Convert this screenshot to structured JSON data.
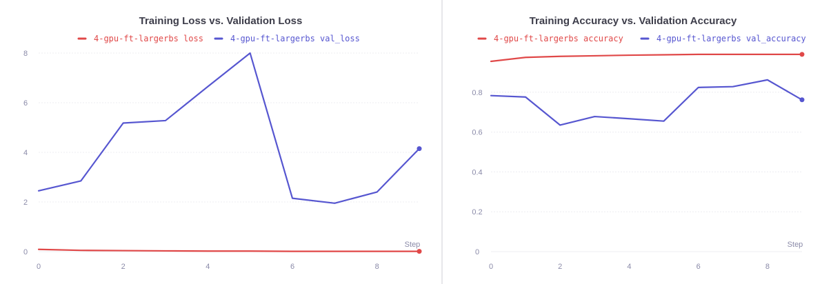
{
  "colors": {
    "train": "#e04848",
    "val": "#5656d0",
    "grid": "#ececf0",
    "tick": "#8a8aa8",
    "title": "#3d3d4a"
  },
  "chart_data": [
    {
      "type": "line",
      "title": "Training Loss vs. Validation Loss",
      "xlabel": "Step",
      "ylabel": "",
      "xlim": [
        0,
        9
      ],
      "ylim": [
        0,
        8
      ],
      "xticks": [
        0,
        2,
        4,
        6,
        8
      ],
      "yticks": [
        0,
        2,
        4,
        6,
        8
      ],
      "grid": true,
      "legend_position": "top",
      "series": [
        {
          "name": "4-gpu-ft-largerbs loss",
          "color": "#e04848",
          "x": [
            0,
            1,
            2,
            3,
            4,
            5,
            6,
            7,
            8,
            9
          ],
          "y": [
            0.09,
            0.05,
            0.04,
            0.03,
            0.02,
            0.02,
            0.01,
            0.01,
            0.01,
            0.01
          ]
        },
        {
          "name": "4-gpu-ft-largerbs val_loss",
          "color": "#5656d0",
          "x": [
            0,
            1,
            2,
            3,
            4,
            5,
            6,
            7,
            8,
            9
          ],
          "y": [
            2.45,
            2.85,
            5.18,
            5.28,
            6.65,
            8.0,
            2.15,
            1.95,
            2.4,
            4.15
          ]
        }
      ]
    },
    {
      "type": "line",
      "title": "Training Accuracy vs. Validation Accuracy",
      "xlabel": "Step",
      "ylabel": "",
      "xlim": [
        0,
        9
      ],
      "ylim": [
        0,
        1.0
      ],
      "xticks": [
        0,
        2,
        4,
        6,
        8
      ],
      "yticks": [
        0,
        0.2,
        0.4,
        0.6,
        0.8
      ],
      "grid": true,
      "legend_position": "top",
      "series": [
        {
          "name": "4-gpu-ft-largerbs accuracy",
          "color": "#e04848",
          "x": [
            0,
            1,
            2,
            3,
            4,
            5,
            6,
            7,
            8,
            9
          ],
          "y": [
            0.955,
            0.975,
            0.98,
            0.983,
            0.986,
            0.988,
            0.99,
            0.99,
            0.99,
            0.99
          ]
        },
        {
          "name": "4-gpu-ft-largerbs val_accuracy",
          "color": "#5656d0",
          "x": [
            0,
            1,
            2,
            3,
            4,
            5,
            6,
            7,
            8,
            9
          ],
          "y": [
            0.783,
            0.776,
            0.635,
            0.678,
            0.667,
            0.655,
            0.824,
            0.828,
            0.862,
            0.762
          ]
        }
      ]
    }
  ]
}
